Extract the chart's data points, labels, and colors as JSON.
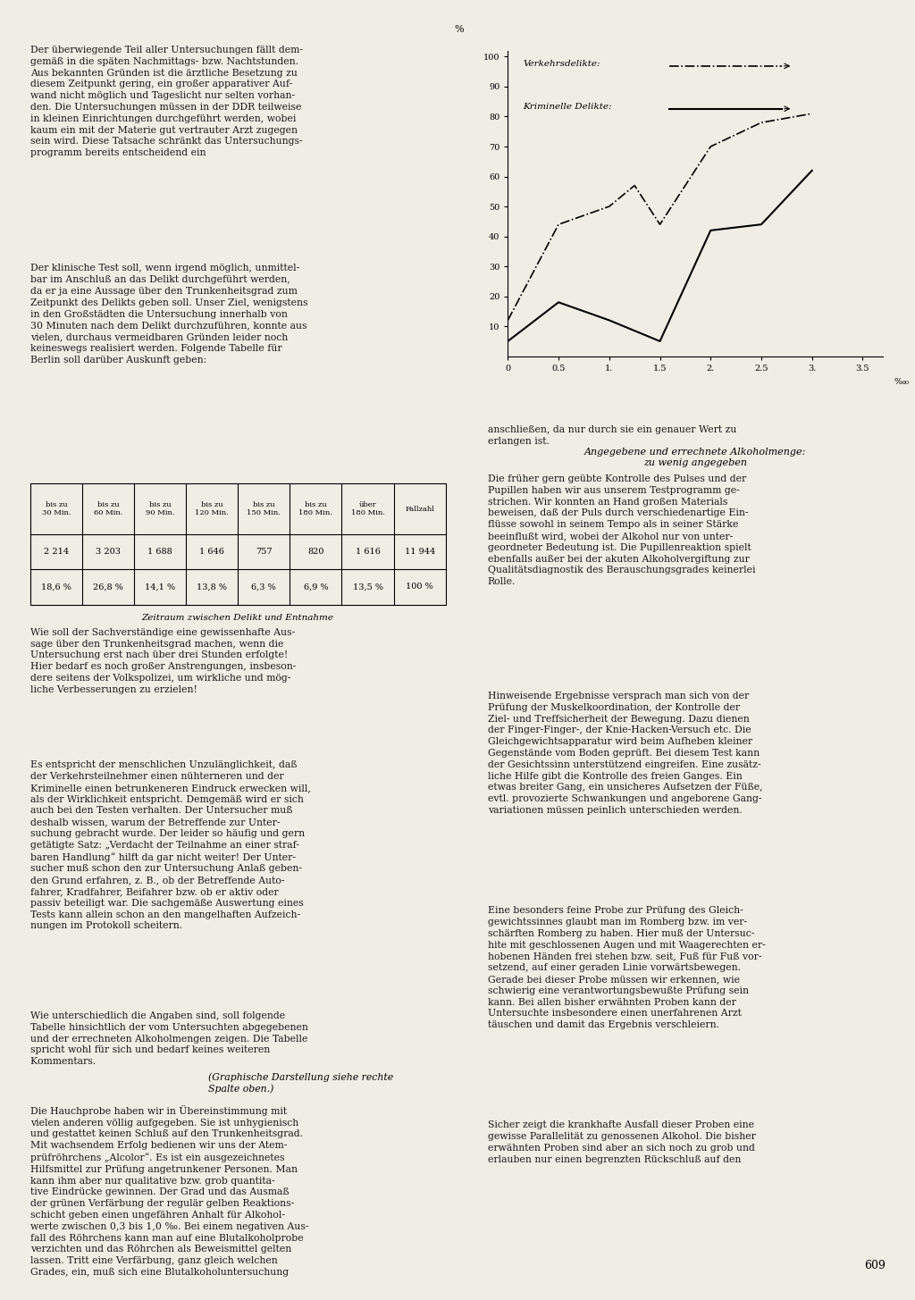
{
  "page_bg": "#f0ede4",
  "text_color": "#1a1a1a",
  "page_number": "609",
  "table_headers": [
    "bis zu\n30 Min.",
    "bis zu\n60 Min.",
    "bis zu\n90 Min.",
    "bis zu\n120 Min.",
    "bis zu\n150 Min.",
    "bis zu\n180 Min.",
    "über\n180 Min.",
    "Fallzahl"
  ],
  "table_row1": [
    "2 214",
    "3 203",
    "1 688",
    "1 646",
    "757",
    "820",
    "1 616",
    "11 944"
  ],
  "table_row2": [
    "18,6 %",
    "26,8 %",
    "14,1 %",
    "13,8 %",
    "6,3 %",
    "6,9 %",
    "13,5 %",
    "100 %"
  ],
  "table_caption": "Zeitraum zwischen Delikt und Entnahme",
  "chart_yticks": [
    10,
    20,
    30,
    40,
    50,
    60,
    70,
    80,
    90,
    100
  ],
  "chart_xticks": [
    0,
    0.5,
    1.0,
    1.5,
    2.0,
    2.5,
    3.0,
    3.5
  ],
  "chart_xlim": [
    0,
    3.7
  ],
  "chart_ylim": [
    0,
    102
  ],
  "verkehr_x": [
    0.0,
    0.5,
    1.0,
    1.25,
    1.5,
    2.0,
    2.5,
    3.0
  ],
  "verkehr_y": [
    12,
    44,
    50,
    57,
    44,
    70,
    78,
    81
  ],
  "kriminell_x": [
    0.0,
    0.5,
    1.0,
    1.5,
    2.0,
    2.5,
    3.0
  ],
  "kriminell_y": [
    5,
    18,
    12,
    5,
    42,
    44,
    62
  ],
  "legend_verkehr": "Verkehrsdelikte:",
  "legend_kriminell": "Kriminelle Delikte:"
}
